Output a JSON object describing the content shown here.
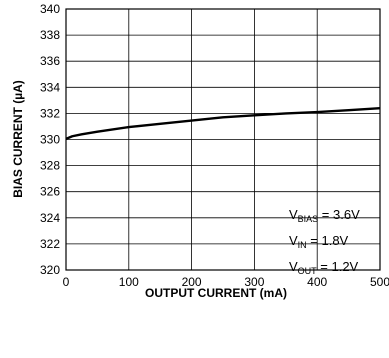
{
  "chart_data": {
    "type": "line",
    "title": "",
    "xlabel": "OUTPUT CURRENT (mA)",
    "ylabel": "BIAS CURRENT (µA)",
    "xlim": [
      0,
      500
    ],
    "ylim": [
      320,
      340
    ],
    "xticks": [
      0,
      100,
      200,
      300,
      400,
      500
    ],
    "yticks": [
      320,
      322,
      324,
      326,
      328,
      330,
      332,
      334,
      336,
      338,
      340
    ],
    "grid": true,
    "series": [
      {
        "x": [
          0,
          10,
          25,
          50,
          100,
          150,
          200,
          250,
          300,
          350,
          400,
          450,
          500
        ],
        "y": [
          330.05,
          330.25,
          330.4,
          330.6,
          330.95,
          331.2,
          331.45,
          331.7,
          331.85,
          332.0,
          332.1,
          332.25,
          332.4
        ]
      }
    ],
    "annotations": [
      {
        "main": "V",
        "sub": "BIAS",
        "rest": " = 3.6V"
      },
      {
        "main": "V",
        "sub": "IN",
        "rest": " = 1.8V"
      },
      {
        "main": "V",
        "sub": "OUT",
        "rest": " = 1.2V"
      }
    ]
  }
}
